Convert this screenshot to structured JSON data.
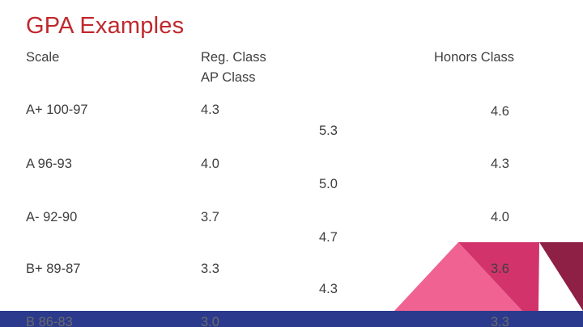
{
  "slide": {
    "title": "GPA Examples",
    "headers": {
      "scale": "Scale",
      "regular": "Reg. Class",
      "ap": "AP Class",
      "honors": "Honors Class"
    },
    "rows": [
      {
        "scale": "A+ 100-97",
        "regular": "4.3",
        "ap": "5.3",
        "honors": "4.6"
      },
      {
        "scale": "A  96-93",
        "regular": "4.0",
        "ap": "5.0",
        "honors": "4.3"
      },
      {
        "scale": "A- 92-90",
        "regular": "3.7",
        "ap": "4.7",
        "honors": "4.0"
      },
      {
        "scale": "B+  89-87",
        "regular": "3.3",
        "ap": "4.3",
        "honors": "3.6"
      },
      {
        "scale": "B  86-83",
        "regular": "3.0",
        "ap": "",
        "honors": "3.3"
      }
    ],
    "colors": {
      "title": "#c0282d",
      "footer_bar": "#2b3a8c",
      "triangle_light": "#ef6292",
      "triangle_mid": "#d2336a",
      "triangle_dark": "#8e1f45"
    }
  }
}
